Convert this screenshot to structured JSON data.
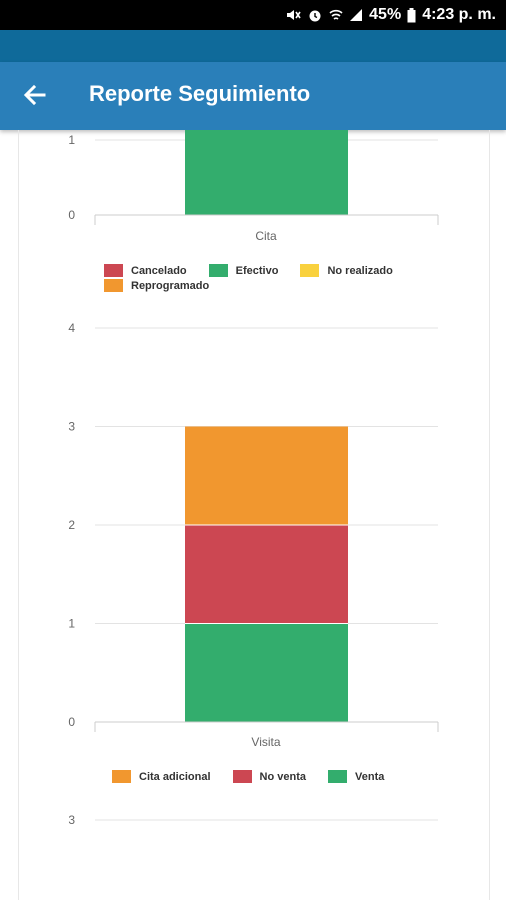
{
  "status_bar": {
    "battery": "45%",
    "time": "4:23 p. m."
  },
  "app_bar": {
    "title": "Reporte Seguimiento"
  },
  "colors": {
    "cancelado": "#cc4752",
    "efectivo": "#33ad6d",
    "no_realizado": "#f9d13e",
    "reprogramado": "#f1972f"
  },
  "chart_data": [
    {
      "type": "bar",
      "stacked": true,
      "categories": [
        "Cita"
      ],
      "series": [
        {
          "name": "Cancelado",
          "values": [
            0
          ]
        },
        {
          "name": "Efectivo",
          "values": [
            2
          ]
        },
        {
          "name": "No realizado",
          "values": [
            0
          ]
        },
        {
          "name": "Reprogramado",
          "values": [
            0
          ]
        }
      ],
      "y_ticks": [
        "0",
        "1"
      ],
      "ylim": [
        0,
        2
      ],
      "legend": "bottom"
    },
    {
      "type": "bar",
      "stacked": true,
      "categories": [
        "Visita"
      ],
      "series": [
        {
          "name": "Cita adicional",
          "values": [
            1
          ]
        },
        {
          "name": "No venta",
          "values": [
            1
          ]
        },
        {
          "name": "Venta",
          "values": [
            1
          ]
        }
      ],
      "stack_order": [
        "Venta",
        "No venta",
        "Cita adicional"
      ],
      "y_ticks": [
        "0",
        "1",
        "2",
        "3",
        "4"
      ],
      "ylim": [
        0,
        4
      ],
      "legend": "bottom"
    },
    {
      "type": "bar",
      "stacked": true,
      "categories": [],
      "series": [],
      "y_ticks": [
        "3"
      ]
    }
  ],
  "legend1": [
    {
      "label": "Cancelado",
      "color": "#cc4752"
    },
    {
      "label": "Efectivo",
      "color": "#33ad6d"
    },
    {
      "label": "No realizado",
      "color": "#f9d13e"
    },
    {
      "label": "Reprogramado",
      "color": "#f1972f"
    }
  ],
  "legend2": [
    {
      "label": "Cita adicional",
      "color": "#f1972f"
    },
    {
      "label": "No venta",
      "color": "#cc4752"
    },
    {
      "label": "Venta",
      "color": "#33ad6d"
    }
  ]
}
